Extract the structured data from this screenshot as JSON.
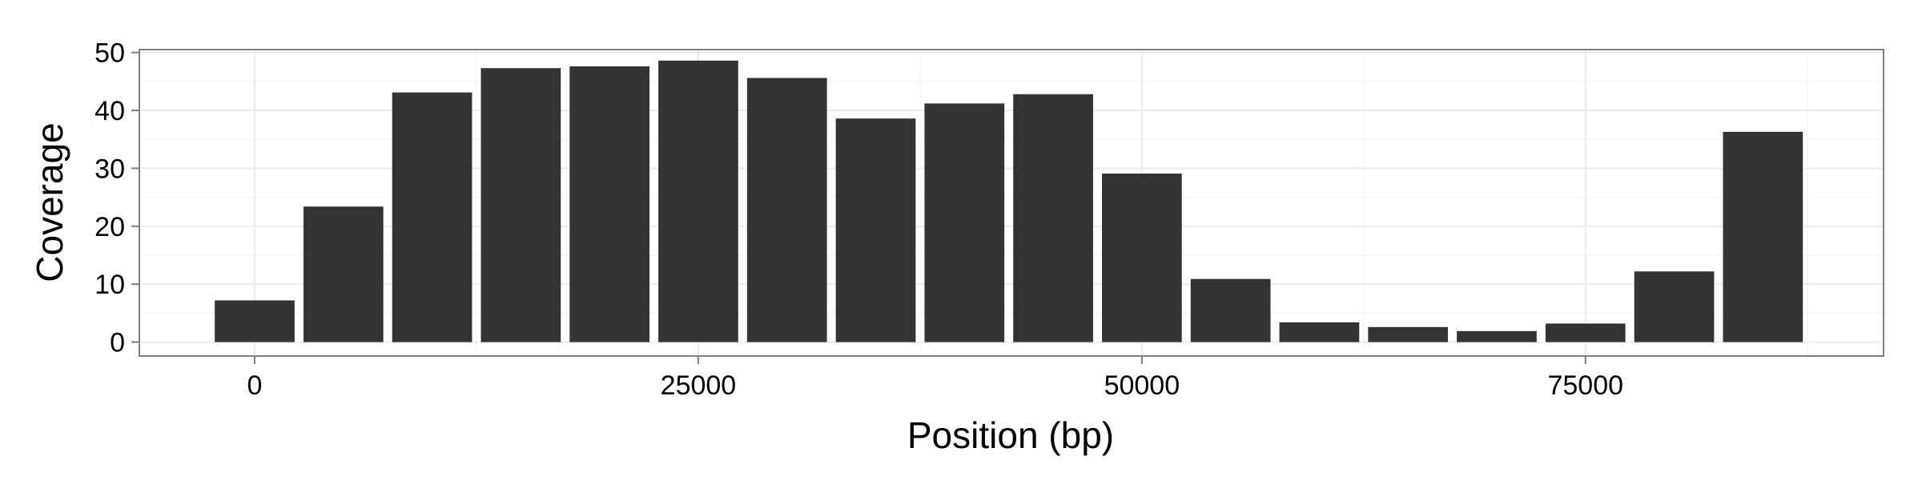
{
  "chart_data": {
    "type": "bar",
    "title": "",
    "xlabel": "Position (bp)",
    "ylabel": "Coverage",
    "x": [
      0,
      5000,
      10000,
      15000,
      20000,
      25000,
      30000,
      35000,
      40000,
      45000,
      50000,
      55000,
      60000,
      65000,
      70000,
      75000,
      80000,
      85000
    ],
    "values": [
      7.2,
      23.4,
      43.1,
      47.3,
      47.6,
      48.6,
      45.6,
      38.6,
      41.2,
      42.8,
      29.1,
      10.9,
      3.4,
      2.6,
      1.9,
      3.2,
      12.2,
      36.3
    ],
    "bin_width": 5000,
    "xlim": [
      -6500,
      91800
    ],
    "ylim": [
      -2.4,
      50.5
    ],
    "xticks": [
      0,
      25000,
      50000,
      75000
    ],
    "xtick_labels": [
      "0",
      "25000",
      "50000",
      "75000"
    ],
    "yticks": [
      0,
      10,
      20,
      30,
      40,
      50
    ],
    "ytick_labels": [
      "0",
      "10",
      "20",
      "30",
      "40",
      "50"
    ],
    "grid": true,
    "legend": "none",
    "colors": {
      "bar": "#333333",
      "panel_border": "#7f7f7f",
      "grid_major": "#ebebeb",
      "grid_minor": "#f5f5f5",
      "axis_text": "#000000"
    }
  }
}
